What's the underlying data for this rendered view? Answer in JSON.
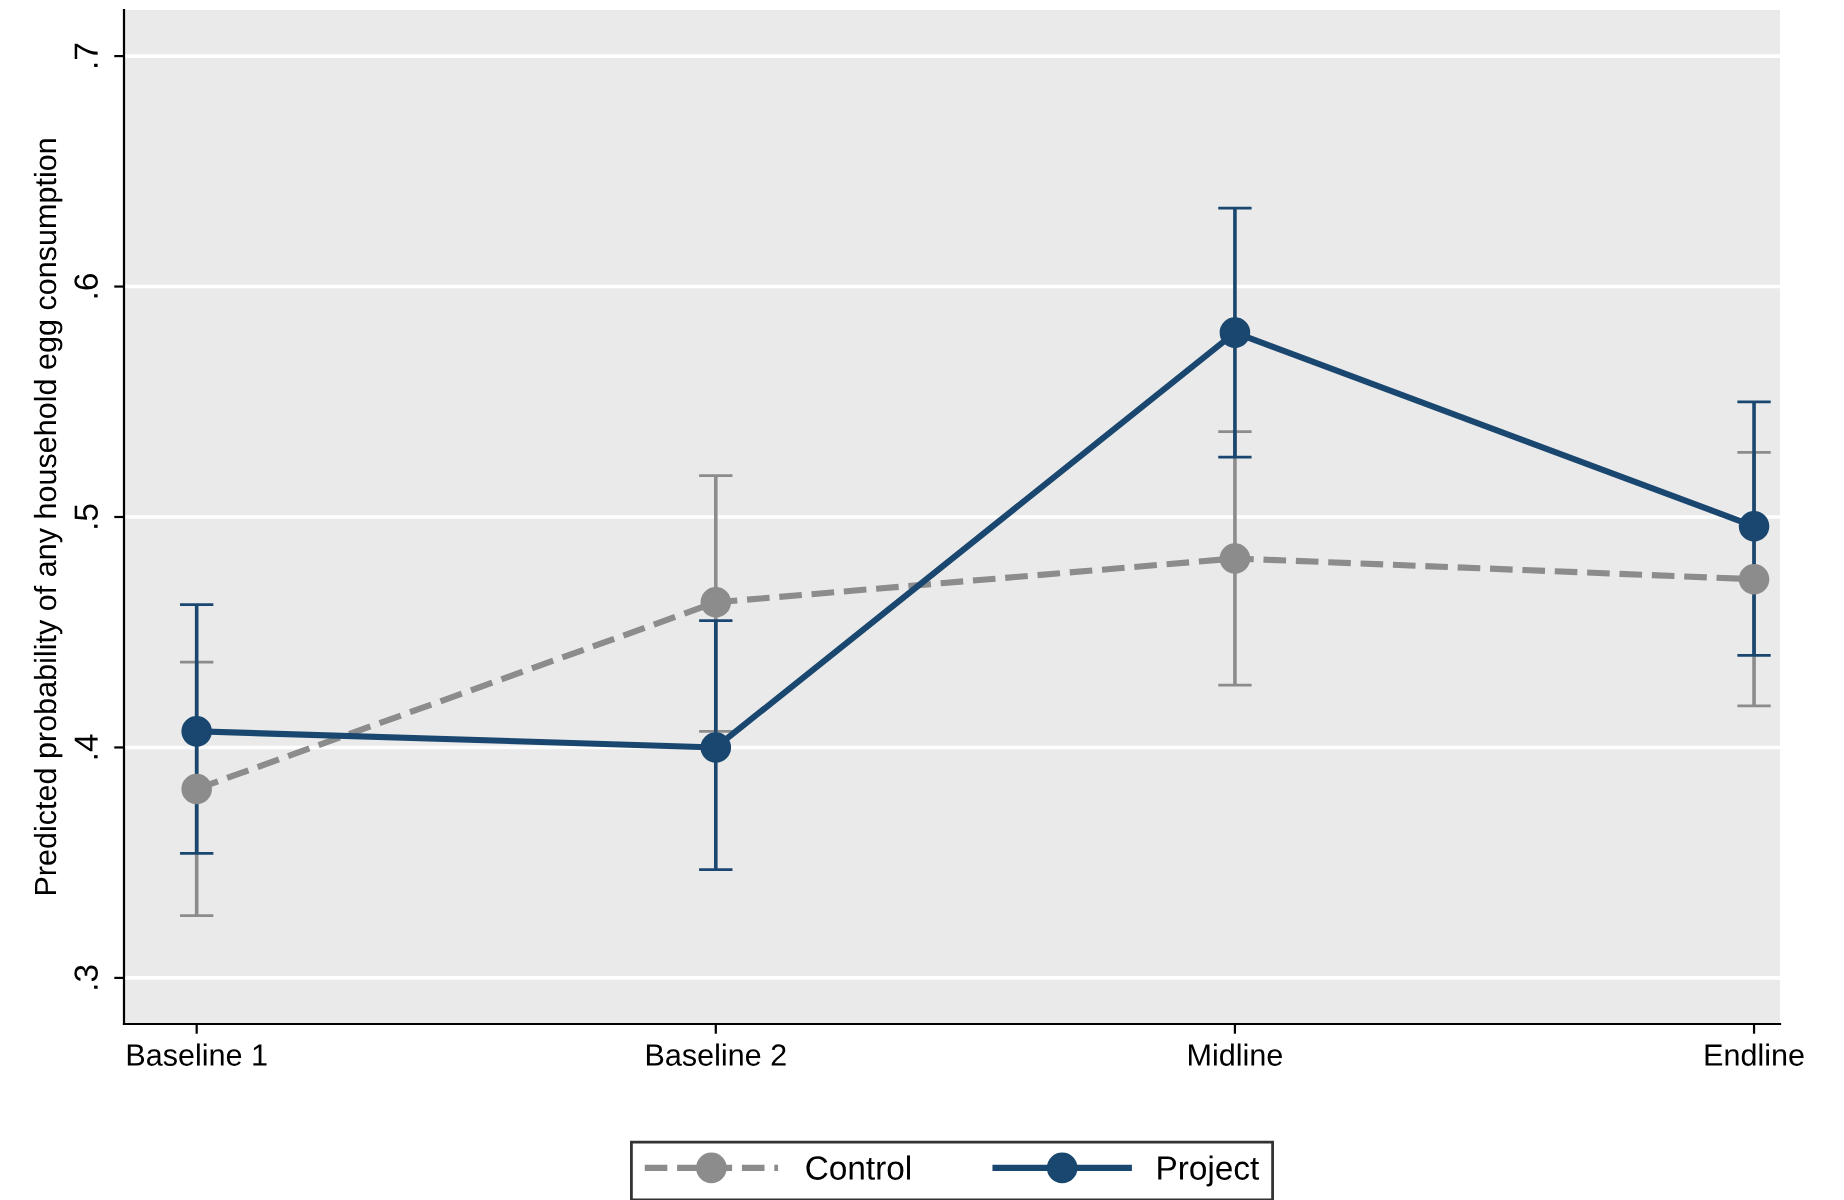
{
  "chart_data": {
    "type": "line",
    "ylabel": "Predicted probability of any household egg consumption",
    "categories": [
      "Baseline 1",
      "Baseline 2",
      "Midline",
      "Endline"
    ],
    "series": [
      {
        "name": "Control",
        "color": "#8c8c8c",
        "line_style": "dashed",
        "marker": "circle",
        "values": [
          0.382,
          0.463,
          0.482,
          0.473
        ],
        "errors": [
          [
            0.327,
            0.437
          ],
          [
            0.407,
            0.518
          ],
          [
            0.427,
            0.537
          ],
          [
            0.418,
            0.528
          ]
        ]
      },
      {
        "name": "Project",
        "color": "#1a476f",
        "line_style": "solid",
        "marker": "circle",
        "values": [
          0.407,
          0.4,
          0.58,
          0.496
        ],
        "errors": [
          [
            0.354,
            0.462
          ],
          [
            0.347,
            0.455
          ],
          [
            0.526,
            0.634
          ],
          [
            0.44,
            0.55
          ]
        ]
      }
    ],
    "ylim": [
      0.28,
      0.72
    ],
    "yticks": [
      {
        "value": 0.3,
        "label": ".3"
      },
      {
        "value": 0.4,
        "label": ".4"
      },
      {
        "value": 0.5,
        "label": ".5"
      },
      {
        "value": 0.6,
        "label": ".6"
      },
      {
        "value": 0.7,
        "label": ".7"
      }
    ],
    "grid": "y",
    "legend": "bottom"
  }
}
